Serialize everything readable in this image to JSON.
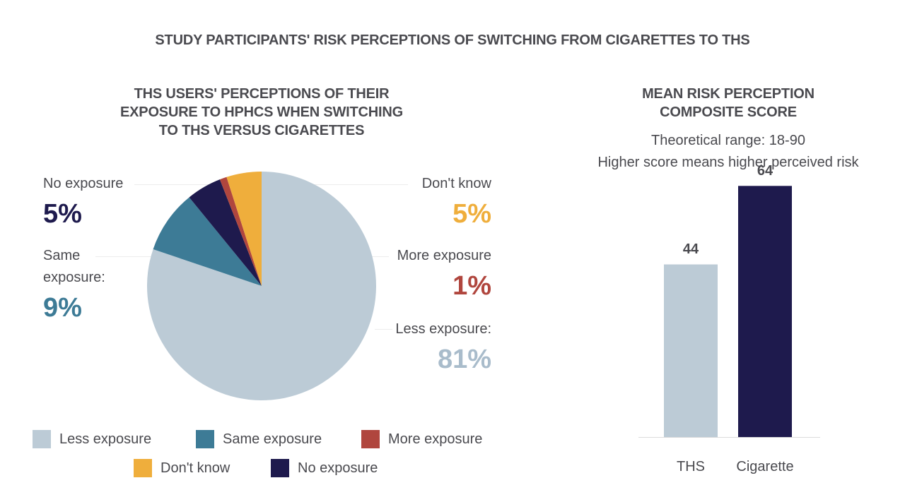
{
  "title": "STUDY PARTICIPANTS' RISK PERCEPTIONS OF SWITCHING FROM CIGARETTES TO THS",
  "colors": {
    "less": "#bccbd6",
    "same": "#3d7b96",
    "more": "#b0463e",
    "dont_know": "#efae3c",
    "no": "#1e1a4d",
    "ths_bar": "#bccbd6",
    "cig_bar": "#1e1a4d"
  },
  "callouts": {
    "no_exposure": {
      "label": "No exposure",
      "pct": "5%"
    },
    "same_exposure": {
      "label_line1": "Same",
      "label_line2": "exposure:",
      "pct": "9%"
    },
    "dont_know": {
      "label": "Don't know",
      "pct": "5%"
    },
    "more_exposure": {
      "label": "More exposure",
      "pct": "1%"
    },
    "less_exposure": {
      "label": "Less exposure:",
      "pct": "81%"
    }
  },
  "legend": {
    "less": "Less exposure",
    "same": "Same exposure",
    "more": "More exposure",
    "dont_know": "Don't know",
    "no": "No exposure"
  },
  "chart_data": [
    {
      "type": "pie",
      "title_lines": [
        "THS USERS' PERCEPTIONS OF THEIR",
        "EXPOSURE TO HPHCS WHEN SWITCHING",
        "TO THS VERSUS CIGARETTES"
      ],
      "categories": [
        "Less exposure",
        "Same exposure",
        "No exposure",
        "More exposure",
        "Don't know"
      ],
      "values": [
        81,
        9,
        5,
        1,
        5
      ],
      "unit": "%"
    },
    {
      "type": "bar",
      "title_lines": [
        "MEAN RISK PERCEPTION",
        "COMPOSITE SCORE"
      ],
      "notes": [
        "Theoretical range: 18-90",
        "Higher score means higher perceived risk"
      ],
      "categories": [
        "THS",
        "Cigarette"
      ],
      "values": [
        44,
        64
      ],
      "value_labels": [
        "44",
        "64"
      ],
      "ylim": [
        0,
        70
      ]
    }
  ]
}
